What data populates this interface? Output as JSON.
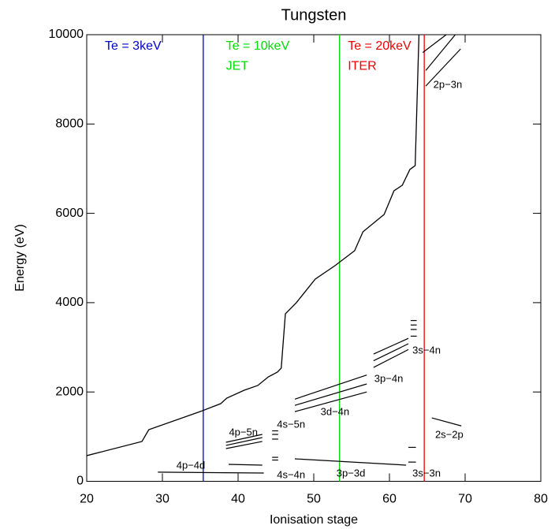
{
  "chart_data": {
    "type": "line",
    "title": "Tungsten",
    "xlabel": "Ionisation stage",
    "ylabel": "Energy (eV)",
    "xlim": [
      20,
      80
    ],
    "ylim": [
      0,
      10000
    ],
    "xticks": [
      20,
      30,
      40,
      50,
      60,
      70,
      80
    ],
    "yticks": [
      0,
      2000,
      4000,
      6000,
      8000,
      10000
    ],
    "series": [
      {
        "color": "#000000",
        "x": [
          20,
          27.3,
          28.2,
          35,
          37.7,
          38.5,
          40.8,
          42.6,
          44,
          45.2,
          45.7,
          46.25,
          47.7,
          50.2,
          52.8,
          55.4,
          56.5,
          59.3,
          60.6,
          61.7,
          62.7,
          63.4,
          63.9
        ],
        "values": [
          574,
          892,
          1156,
          1562,
          1738,
          1862,
          2039,
          2145,
          2339,
          2445,
          2533,
          3750,
          4000,
          4528,
          4828,
          5164,
          5587,
          5976,
          6505,
          6629,
          6982,
          7070,
          10000
        ]
      }
    ],
    "segments": [
      {
        "x": [
          29.4,
          43.4
        ],
        "y": [
          205,
          185
        ]
      },
      {
        "x": [
          38.75,
          43.2
        ],
        "y": [
          380,
          362
        ]
      },
      {
        "x": [
          38.4,
          43.2
        ],
        "y": [
          733,
          892
        ]
      },
      {
        "x": [
          38.4,
          43.2
        ],
        "y": [
          804,
          980
        ]
      },
      {
        "x": [
          38.4,
          43.2
        ],
        "y": [
          874,
          1050
        ]
      },
      {
        "x": [
          44.5,
          45.3
        ],
        "y": [
          476,
          476
        ]
      },
      {
        "x": [
          44.5,
          45.3
        ],
        "y": [
          537,
          537
        ]
      },
      {
        "x": [
          44.5,
          45.3
        ],
        "y": [
          945,
          945
        ]
      },
      {
        "x": [
          44.5,
          45.3
        ],
        "y": [
          1050,
          1050
        ]
      },
      {
        "x": [
          44.5,
          45.3
        ],
        "y": [
          1130,
          1130
        ]
      },
      {
        "x": [
          47.5,
          62.2
        ],
        "y": [
          503,
          362
        ]
      },
      {
        "x": [
          47.5,
          57
        ],
        "y": [
          1560,
          2000
        ]
      },
      {
        "x": [
          47.5,
          57
        ],
        "y": [
          1700,
          2180
        ]
      },
      {
        "x": [
          47.5,
          57
        ],
        "y": [
          1840,
          2380
        ]
      },
      {
        "x": [
          57.9,
          62.5
        ],
        "y": [
          2550,
          2950
        ]
      },
      {
        "x": [
          57.9,
          62.5
        ],
        "y": [
          2700,
          3080
        ]
      },
      {
        "x": [
          57.9,
          62.5
        ],
        "y": [
          2850,
          3200
        ]
      },
      {
        "x": [
          62.8,
          63.6
        ],
        "y": [
          3250,
          3250
        ]
      },
      {
        "x": [
          62.8,
          63.6
        ],
        "y": [
          3400,
          3400
        ]
      },
      {
        "x": [
          62.8,
          63.6
        ],
        "y": [
          3500,
          3500
        ]
      },
      {
        "x": [
          62.8,
          63.6
        ],
        "y": [
          3600,
          3600
        ]
      },
      {
        "x": [
          62.5,
          63.5
        ],
        "y": [
          430,
          430
        ]
      },
      {
        "x": [
          62.5,
          63.5
        ],
        "y": [
          760,
          760
        ]
      },
      {
        "x": [
          65.6,
          69.5
        ],
        "y": [
          1420,
          1240
        ]
      },
      {
        "x": [
          64.4,
          67.5
        ],
        "y": [
          9600,
          10000
        ]
      },
      {
        "x": [
          64.8,
          68.7
        ],
        "y": [
          9200,
          10000
        ]
      },
      {
        "x": [
          64.8,
          69.4
        ],
        "y": [
          8850,
          9680
        ]
      }
    ],
    "annotations": [
      {
        "text": "4p−4d",
        "x": 33.75,
        "y": 345
      },
      {
        "text": "4s−4n",
        "x": 47,
        "y": 133
      },
      {
        "text": "3p−3d",
        "x": 54.9,
        "y": 168
      },
      {
        "text": "3s−3n",
        "x": 64.9,
        "y": 168
      },
      {
        "text": "4p−5n",
        "x": 40.7,
        "y": 1085
      },
      {
        "text": "4s−5n",
        "x": 47,
        "y": 1262
      },
      {
        "text": "3d−4n",
        "x": 52.8,
        "y": 1545
      },
      {
        "text": "3p−4n",
        "x": 59.9,
        "y": 2285
      },
      {
        "text": "3s−4n",
        "x": 64.9,
        "y": 2920
      },
      {
        "text": "2s−2p",
        "x": 67.9,
        "y": 1032
      },
      {
        "text": "2p−3n",
        "x": 67.7,
        "y": 8870
      }
    ],
    "markers": [
      {
        "x": 35.4,
        "color": "#0000cc",
        "labels": [
          {
            "text": "Te = 3keV",
            "x": 22.4,
            "y": 9735
          }
        ]
      },
      {
        "x": 53.4,
        "color": "#00dd00",
        "labels": [
          {
            "text": "Te = 10keV",
            "x": 38.4,
            "y": 9735
          },
          {
            "text": "JET",
            "x": 38.4,
            "y": 9290
          }
        ]
      },
      {
        "x": 64.6,
        "color": "#ee0000",
        "labels": [
          {
            "text": "Te = 20keV",
            "x": 54.5,
            "y": 9735
          },
          {
            "text": "ITER",
            "x": 54.5,
            "y": 9290
          }
        ]
      }
    ]
  }
}
